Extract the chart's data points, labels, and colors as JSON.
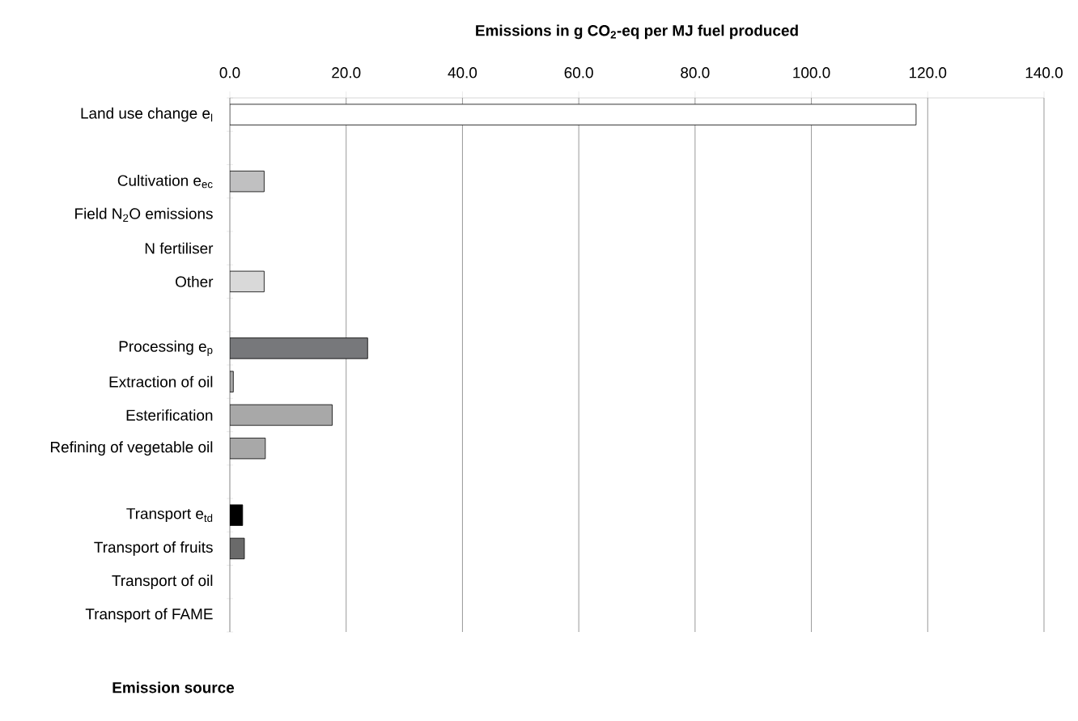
{
  "chart_data": {
    "type": "bar",
    "orientation": "horizontal",
    "xlabel": "Emissions in g CO$_{2}$-eq per MJ fuel produced",
    "ylabel": "Emission source",
    "categories": [
      "Land use change e$_{l}$",
      null,
      "Cultivation e$_{ec}$",
      "Field N$_{2}$O emissions",
      "N fertiliser",
      "Other",
      null,
      "Processing e$_{p}$",
      "Extraction of oil",
      "Esterification",
      "Refining of vegetable oil",
      null,
      "Transport e$_{td}$",
      "Transport of fruits",
      "Transport of oil",
      "Transport of FAME"
    ],
    "values": [
      118.0,
      null,
      5.9,
      null,
      null,
      5.9,
      null,
      23.7,
      0.6,
      17.6,
      6.1,
      null,
      2.2,
      2.5,
      null,
      null
    ],
    "colors": [
      "#ffffff",
      null,
      "#c0c0c1",
      "#c0c0c1",
      "#c0c0c1",
      "#d9d9d9",
      null,
      "#77787b",
      "#a8a8a8",
      "#a8a8a8",
      "#a8a8a8",
      null,
      "#000000",
      "#6a6a6a",
      "#6a6a6a",
      "#6a6a6a"
    ],
    "xlim": [
      0,
      140
    ],
    "xticks": [
      {
        "value": 0,
        "label": "0.0"
      },
      {
        "value": 20,
        "label": "20.0"
      },
      {
        "value": 40,
        "label": "40.0"
      },
      {
        "value": 60,
        "label": "60.0"
      },
      {
        "value": 80,
        "label": "80.0"
      },
      {
        "value": 100,
        "label": "100.0"
      },
      {
        "value": 120,
        "label": "120.0"
      },
      {
        "value": 140,
        "label": "140.0"
      }
    ],
    "grid": "x"
  }
}
